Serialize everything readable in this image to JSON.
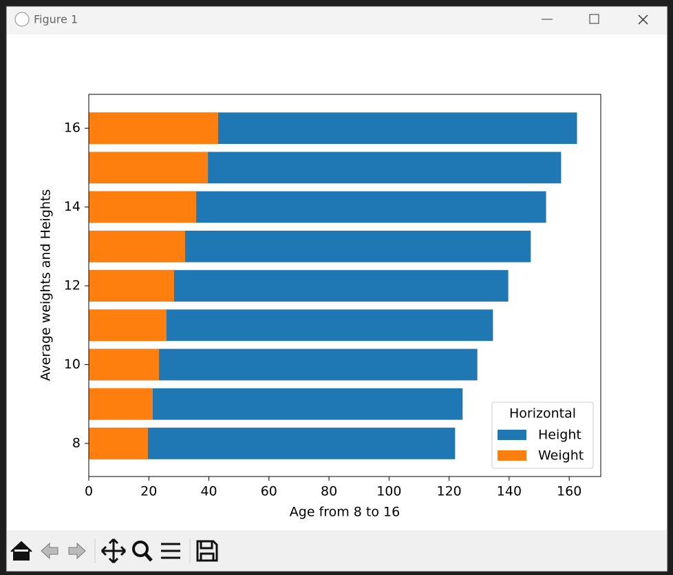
{
  "window": {
    "title": "Figure 1"
  },
  "chart_data": {
    "type": "barh",
    "xlabel": "Age from 8 to 16",
    "ylabel": "Average weights and Heights",
    "categories": [
      8,
      9,
      10,
      11,
      12,
      13,
      14,
      15,
      16
    ],
    "series": [
      {
        "name": "Height",
        "color": "#1f77b4",
        "values": [
          122,
          124.5,
          129.4,
          134.6,
          139.7,
          147.2,
          152.3,
          157.3,
          162.6
        ]
      },
      {
        "name": "Weight",
        "color": "#ff7f0e",
        "values": [
          19.7,
          21.3,
          23.4,
          25.9,
          28.4,
          32.1,
          35.8,
          39.7,
          43.1
        ]
      }
    ],
    "xlim": [
      0,
      170.5
    ],
    "xticks": [
      0,
      20,
      40,
      60,
      80,
      100,
      120,
      140,
      160
    ],
    "ylim": [
      7.16,
      16.86
    ],
    "yticks": [
      8,
      10,
      12,
      14,
      16
    ],
    "legend_title": "Horizontal",
    "legend": "lower right"
  }
}
